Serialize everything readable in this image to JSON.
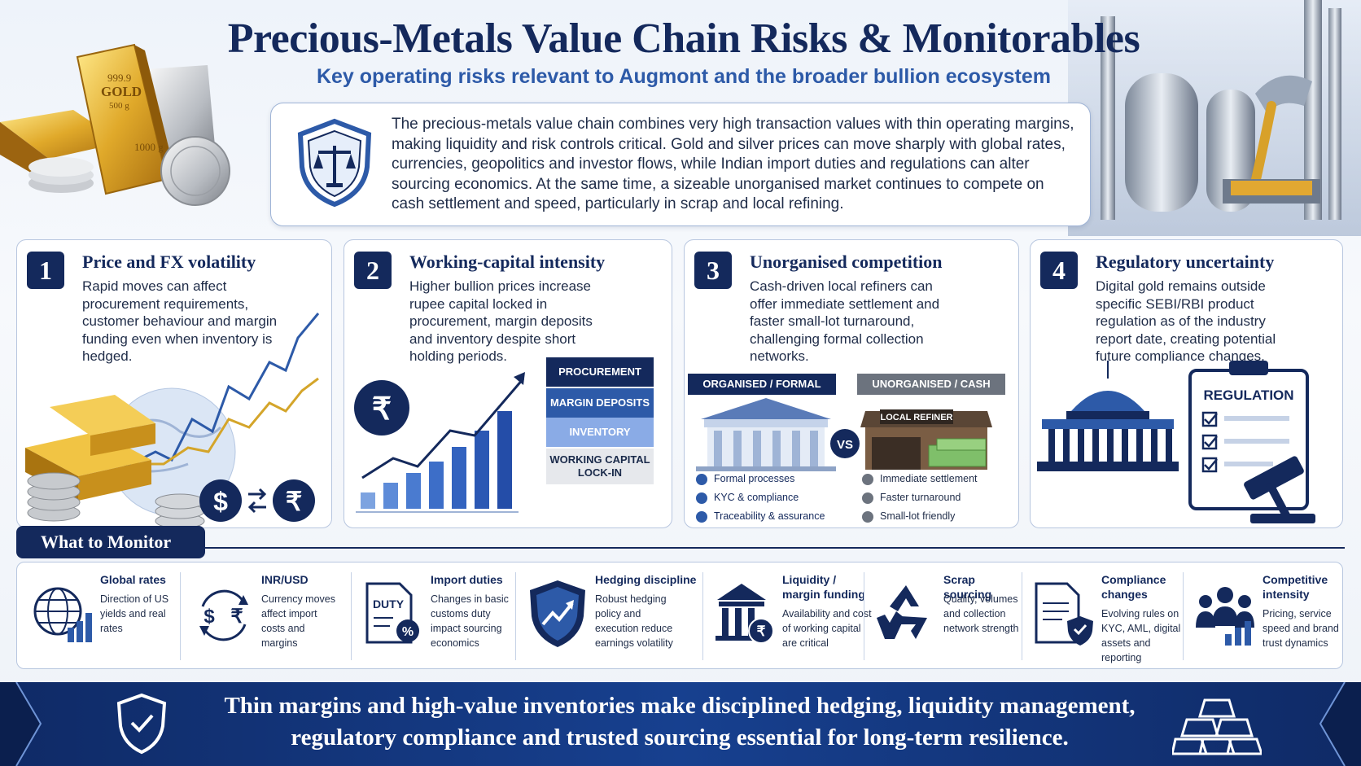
{
  "header": {
    "title": "Precious-Metals Value Chain Risks & Monitorables",
    "subtitle": "Key operating risks relevant to Augmont and the broader bullion ecosystem"
  },
  "hero": {
    "bar_stamp_1": "999.9",
    "bar_stamp_2": "GOLD",
    "bar_stamp_3": "500 g",
    "bar_weight": "1000 g"
  },
  "intro": {
    "text": "The precious-metals value chain combines very high transaction values with thin operating margins, making liquidity and risk controls critical. Gold and silver prices can move sharply with global rates, currencies, geopolitics and investor flows, while Indian import duties and regulations can alter sourcing economics. At the same time, a sizeable unorganised market continues to compete on cash settlement and speed, particularly in scrap and local refining."
  },
  "cards": [
    {
      "num": "1",
      "title": "Price and FX volatility",
      "body": "Rapid moves can affect procurement requirements, customer behaviour and margin funding even when inventory is hedged."
    },
    {
      "num": "2",
      "title": "Working-capital intensity",
      "body": "Higher bullion prices increase rupee capital locked in procurement, margin deposits and inventory despite short holding periods."
    },
    {
      "num": "3",
      "title": "Unorganised competition",
      "body": "Cash-driven local refiners can offer immediate settlement and faster small-lot turnaround, challenging formal collection networks."
    },
    {
      "num": "4",
      "title": "Regulatory uncertainty",
      "body": "Digital gold remains outside specific SEBI/RBI product regulation as of the industry report date, creating potential future compliance changes."
    }
  ],
  "card1": {
    "dollar": "$",
    "rupee": "₹"
  },
  "card2": {
    "rupee": "₹",
    "stack": [
      "PROCUREMENT",
      "MARGIN DEPOSITS",
      "INVENTORY",
      "WORKING CAPITAL LOCK-IN"
    ]
  },
  "card3": {
    "organised_head": "ORGANISED / FORMAL",
    "unorganised_head": "UNORGANISED / CASH",
    "vs": "VS",
    "shop_sign": "LOCAL REFINER",
    "organised_items": [
      "Formal processes",
      "KYC & compliance",
      "Traceability & assurance"
    ],
    "unorganised_items": [
      "Immediate settlement",
      "Faster turnaround",
      "Small-lot friendly"
    ]
  },
  "card4": {
    "clipboard_label": "REGULATION"
  },
  "monitor": {
    "tab": "What to Monitor",
    "items": [
      {
        "title": "Global rates",
        "desc": "Direction of US yields and real rates",
        "icon": "globe-chart-icon"
      },
      {
        "title": "INR/USD",
        "desc": "Currency moves affect import costs and margins",
        "icon": "currency-exchange-icon"
      },
      {
        "title": "Import duties",
        "desc": "Changes in basic customs duty impact sourcing economics",
        "icon": "duty-document-icon",
        "icon_text": "DUTY"
      },
      {
        "title": "Hedging discipline",
        "desc": "Robust hedging policy and execution reduce earnings volatility",
        "icon": "shield-trend-icon"
      },
      {
        "title": "Liquidity / margin funding",
        "desc": "Availability and cost of working capital are critical",
        "icon": "bank-rupee-icon"
      },
      {
        "title": "Scrap sourcing",
        "desc": "Quality, volumes and collection network strength",
        "icon": "recycle-icon"
      },
      {
        "title": "Compliance changes",
        "desc": "Evolving rules on KYC, AML, digital assets and reporting",
        "icon": "compliance-document-icon"
      },
      {
        "title": "Competitive intensity",
        "desc": "Pricing, service speed and brand trust dynamics",
        "icon": "people-chart-icon"
      }
    ]
  },
  "banner": {
    "text": "Thin margins and high-value inventories make disciplined hedging, liquidity management, regulatory compliance and trusted sourcing essential for long-term resilience."
  },
  "colors": {
    "navy": "#14295c",
    "blue": "#2d5aa8",
    "gold": "#d4a52a"
  }
}
